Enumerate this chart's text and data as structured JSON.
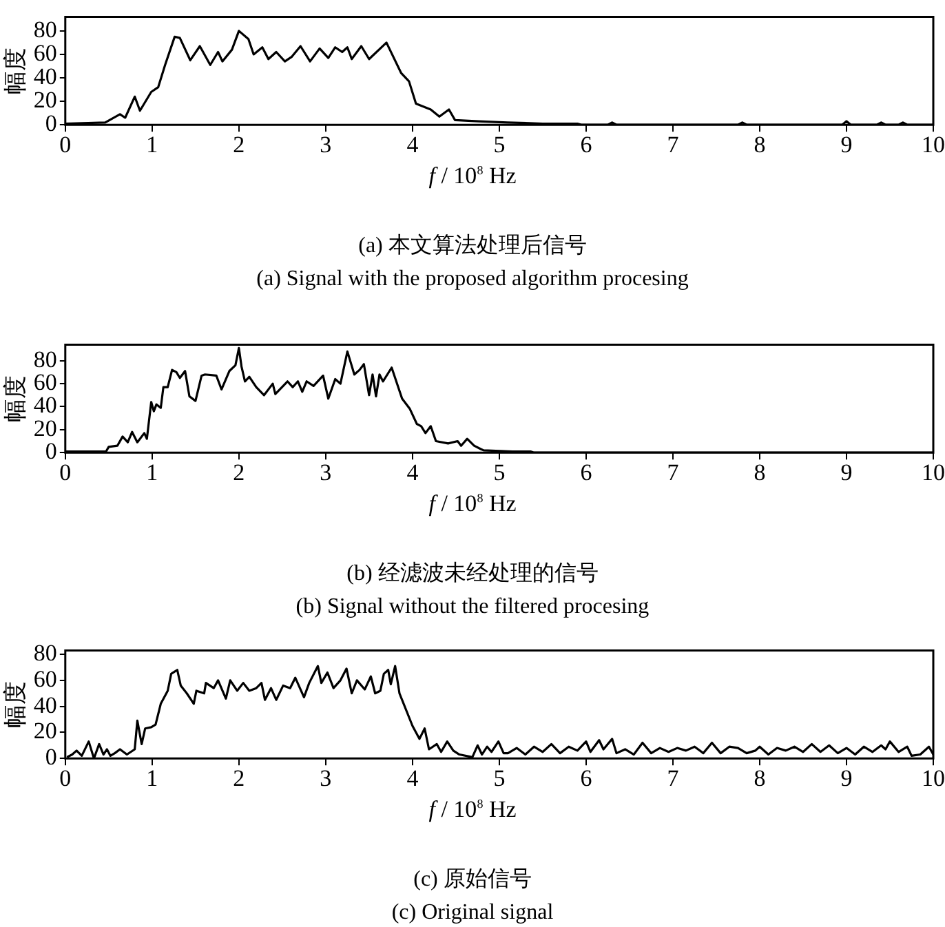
{
  "chart_data": [
    {
      "type": "line",
      "xlabel": "f / 10$^{8}$ Hz",
      "ylabel": "幅度",
      "annotations": [
        "(a) 本文算法处理后信号",
        "(a) Signal with the proposed algorithm procesing"
      ],
      "xlim": [
        0,
        10
      ],
      "ylim": [
        0,
        92
      ],
      "xticks": [
        0,
        1,
        2,
        3,
        4,
        5,
        6,
        7,
        8,
        9,
        10
      ],
      "yticks": [
        0,
        20,
        40,
        60,
        80
      ],
      "grid": false,
      "legend": false,
      "marker": "none",
      "line_style": "solid",
      "series": [
        {
          "color": "#000000",
          "x": [
            0,
            0.46,
            0.63,
            0.69,
            0.8,
            0.86,
            0.99,
            1.07,
            1.15,
            1.26,
            1.32,
            1.44,
            1.55,
            1.67,
            1.76,
            1.81,
            1.92,
            2.0,
            2.11,
            2.17,
            2.27,
            2.34,
            2.43,
            2.53,
            2.61,
            2.71,
            2.82,
            2.93,
            3.03,
            3.11,
            3.19,
            3.25,
            3.3,
            3.41,
            3.5,
            3.7,
            3.87,
            3.96,
            4.04,
            4.21,
            4.31,
            4.42,
            4.49,
            4.76,
            5.09,
            5.5,
            5.9,
            5.95,
            6.25,
            6.3,
            6.35,
            7.75,
            7.8,
            7.85,
            8.95,
            9.0,
            9.05,
            9.35,
            9.4,
            9.45,
            9.6,
            9.65,
            9.7,
            10
          ],
          "values": [
            1,
            2,
            9,
            6,
            24,
            12,
            28,
            32,
            51,
            75,
            74,
            55,
            67,
            51,
            62,
            54,
            64,
            80,
            73,
            60,
            66,
            56,
            62,
            54,
            58,
            67,
            54,
            65,
            57,
            66,
            62,
            66,
            56,
            67,
            56,
            70,
            44,
            37,
            18,
            13,
            7,
            13,
            4,
            3,
            2,
            1,
            1,
            0,
            0,
            2,
            0,
            0,
            2,
            0,
            0,
            3,
            0,
            0,
            2,
            0,
            0,
            2,
            0,
            0
          ]
        }
      ]
    },
    {
      "type": "line",
      "xlabel": "f / 10$^{8}$ Hz",
      "ylabel": "幅度",
      "annotations": [
        "(b) 经滤波未经处理的信号",
        "(b) Signal without the filtered procesing"
      ],
      "xlim": [
        0,
        10
      ],
      "ylim": [
        0,
        94
      ],
      "xticks": [
        0,
        1,
        2,
        3,
        4,
        5,
        6,
        7,
        8,
        9,
        10
      ],
      "yticks": [
        0,
        20,
        40,
        60,
        80
      ],
      "grid": false,
      "legend": false,
      "marker": "none",
      "line_style": "solid",
      "series": [
        {
          "color": "#000000",
          "x": [
            0,
            0.47,
            0.5,
            0.6,
            0.66,
            0.72,
            0.77,
            0.83,
            0.91,
            0.94,
            0.99,
            1.02,
            1.05,
            1.1,
            1.13,
            1.18,
            1.23,
            1.28,
            1.32,
            1.38,
            1.43,
            1.5,
            1.57,
            1.61,
            1.74,
            1.8,
            1.89,
            1.96,
            2.0,
            2.03,
            2.07,
            2.12,
            2.2,
            2.29,
            2.39,
            2.42,
            2.56,
            2.62,
            2.68,
            2.73,
            2.78,
            2.86,
            2.97,
            3.03,
            3.11,
            3.17,
            3.25,
            3.33,
            3.39,
            3.44,
            3.5,
            3.54,
            3.58,
            3.62,
            3.66,
            3.76,
            3.88,
            3.97,
            4.05,
            4.1,
            4.15,
            4.21,
            4.27,
            4.41,
            4.52,
            4.56,
            4.63,
            4.71,
            4.79,
            4.82,
            5.15,
            5.36,
            5.4,
            10
          ],
          "values": [
            1,
            1,
            5,
            6,
            14,
            9,
            18,
            9,
            17,
            12,
            44,
            36,
            42,
            39,
            57,
            57,
            72,
            70,
            65,
            71,
            49,
            45,
            67,
            68,
            67,
            55,
            71,
            76,
            91,
            75,
            62,
            66,
            57,
            50,
            60,
            51,
            62,
            57,
            62,
            53,
            62,
            58,
            67,
            47,
            64,
            60,
            88,
            68,
            72,
            77,
            50,
            68,
            49,
            68,
            62,
            74,
            47,
            38,
            25,
            23,
            17,
            23,
            10,
            8,
            10,
            6,
            12,
            6,
            3,
            2,
            1,
            1,
            0,
            0
          ]
        }
      ]
    },
    {
      "type": "line",
      "xlabel": "f / 10$^{8}$ Hz",
      "ylabel": "幅度",
      "annotations": [
        "(c) 原始信号",
        "(c) Original signal"
      ],
      "xlim": [
        0,
        10
      ],
      "ylim": [
        0,
        83
      ],
      "xticks": [
        0,
        1,
        2,
        3,
        4,
        5,
        6,
        7,
        8,
        9,
        10
      ],
      "yticks": [
        0,
        20,
        40,
        60,
        80
      ],
      "grid": false,
      "legend": false,
      "marker": "none",
      "line_style": "solid",
      "series": [
        {
          "color": "#000000",
          "x": [
            0.02,
            0.08,
            0.13,
            0.19,
            0.27,
            0.33,
            0.39,
            0.44,
            0.48,
            0.52,
            0.57,
            0.63,
            0.71,
            0.8,
            0.83,
            0.88,
            0.92,
            0.99,
            1.04,
            1.1,
            1.18,
            1.22,
            1.29,
            1.33,
            1.4,
            1.48,
            1.51,
            1.6,
            1.62,
            1.71,
            1.76,
            1.85,
            1.9,
            1.98,
            2.05,
            2.12,
            2.2,
            2.26,
            2.3,
            2.37,
            2.43,
            2.51,
            2.59,
            2.65,
            2.75,
            2.81,
            2.91,
            2.95,
            3.02,
            3.09,
            3.17,
            3.24,
            3.3,
            3.36,
            3.45,
            3.52,
            3.57,
            3.63,
            3.67,
            3.72,
            3.75,
            3.8,
            3.85,
            4.0,
            4.08,
            4.14,
            4.19,
            4.28,
            4.33,
            4.4,
            4.47,
            4.54,
            4.69,
            4.75,
            4.8,
            4.86,
            4.91,
            4.99,
            5.05,
            5.1,
            5.2,
            5.3,
            5.4,
            5.5,
            5.6,
            5.7,
            5.8,
            5.9,
            6.0,
            6.05,
            6.15,
            6.2,
            6.3,
            6.35,
            6.45,
            6.55,
            6.65,
            6.75,
            6.85,
            6.95,
            7.05,
            7.15,
            7.25,
            7.35,
            7.45,
            7.55,
            7.65,
            7.75,
            7.85,
            7.95,
            8.0,
            8.1,
            8.2,
            8.3,
            8.4,
            8.5,
            8.6,
            8.7,
            8.8,
            8.9,
            9.0,
            9.1,
            9.2,
            9.3,
            9.4,
            9.45,
            9.5,
            9.6,
            9.7,
            9.75,
            9.85,
            9.95,
            10
          ],
          "values": [
            1,
            3,
            6,
            2,
            13,
            0,
            11,
            3,
            7,
            2,
            4,
            7,
            3,
            7,
            29,
            11,
            23,
            24,
            26,
            42,
            52,
            65,
            68,
            56,
            50,
            42,
            52,
            50,
            58,
            54,
            60,
            46,
            60,
            52,
            58,
            52,
            54,
            58,
            45,
            54,
            45,
            56,
            54,
            62,
            47,
            58,
            71,
            58,
            66,
            54,
            60,
            69,
            50,
            60,
            53,
            63,
            50,
            52,
            65,
            68,
            57,
            71,
            50,
            25,
            15,
            23,
            7,
            11,
            5,
            13,
            6,
            3,
            1,
            10,
            3,
            9,
            5,
            13,
            4,
            4,
            8,
            3,
            9,
            5,
            11,
            4,
            9,
            6,
            13,
            5,
            14,
            7,
            15,
            4,
            7,
            3,
            12,
            4,
            8,
            5,
            8,
            6,
            9,
            4,
            12,
            4,
            9,
            8,
            4,
            6,
            9,
            3,
            8,
            6,
            9,
            5,
            11,
            5,
            10,
            4,
            8,
            3,
            9,
            5,
            10,
            7,
            13,
            5,
            9,
            2,
            3,
            9,
            3
          ]
        }
      ]
    }
  ]
}
